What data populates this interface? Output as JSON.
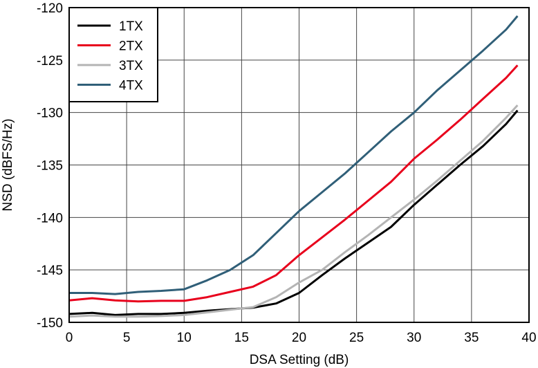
{
  "chart_data": {
    "type": "line",
    "xlabel": "DSA Setting (dB)",
    "ylabel": "NSD (dBFS/Hz)",
    "xlim": [
      0,
      40
    ],
    "ylim": [
      -150,
      -120
    ],
    "xticks": [
      0,
      5,
      10,
      15,
      20,
      25,
      30,
      35,
      40
    ],
    "yticks": [
      -150,
      -145,
      -140,
      -135,
      -130,
      -125,
      -120
    ],
    "grid": true,
    "legend_position": "top-left",
    "series": [
      {
        "name": "1TX",
        "color": "#000000",
        "x": [
          0,
          2,
          4,
          6,
          8,
          10,
          12,
          14,
          16,
          18,
          20,
          22,
          24,
          26,
          28,
          30,
          32,
          34,
          36,
          38,
          39
        ],
        "y": [
          -149.2,
          -149.1,
          -149.3,
          -149.2,
          -149.2,
          -149.1,
          -148.9,
          -148.75,
          -148.6,
          -148.2,
          -147.2,
          -145.5,
          -143.9,
          -142.4,
          -140.9,
          -138.8,
          -136.9,
          -135.0,
          -133.2,
          -131.1,
          -129.8
        ]
      },
      {
        "name": "2TX",
        "color": "#e8001c",
        "x": [
          0,
          2,
          4,
          6,
          8,
          10,
          12,
          14,
          16,
          18,
          20,
          22,
          24,
          26,
          28,
          30,
          32,
          34,
          36,
          38,
          39
        ],
        "y": [
          -147.9,
          -147.7,
          -147.9,
          -148.0,
          -147.95,
          -147.95,
          -147.6,
          -147.1,
          -146.6,
          -145.5,
          -143.6,
          -141.9,
          -140.2,
          -138.4,
          -136.6,
          -134.4,
          -132.6,
          -130.7,
          -128.7,
          -126.7,
          -125.5
        ]
      },
      {
        "name": "3TX",
        "color": "#b4b4b4",
        "x": [
          0,
          2,
          4,
          6,
          8,
          10,
          12,
          14,
          16,
          18,
          20,
          22,
          24,
          26,
          28,
          30,
          32,
          34,
          36,
          38,
          39
        ],
        "y": [
          -149.45,
          -149.35,
          -149.45,
          -149.45,
          -149.4,
          -149.3,
          -149.05,
          -148.8,
          -148.55,
          -147.6,
          -146.2,
          -145.0,
          -143.3,
          -141.7,
          -140.0,
          -138.3,
          -136.5,
          -134.6,
          -132.7,
          -130.5,
          -129.3
        ]
      },
      {
        "name": "4TX",
        "color": "#305f78",
        "x": [
          0,
          2,
          4,
          6,
          8,
          10,
          12,
          14,
          16,
          18,
          20,
          22,
          24,
          26,
          28,
          30,
          32,
          34,
          36,
          38,
          39
        ],
        "y": [
          -147.2,
          -147.2,
          -147.3,
          -147.1,
          -147.0,
          -146.85,
          -146.0,
          -145.0,
          -143.6,
          -141.5,
          -139.4,
          -137.6,
          -135.8,
          -133.8,
          -131.8,
          -130.0,
          -127.9,
          -126.0,
          -124.1,
          -122.1,
          -120.8
        ]
      }
    ]
  }
}
